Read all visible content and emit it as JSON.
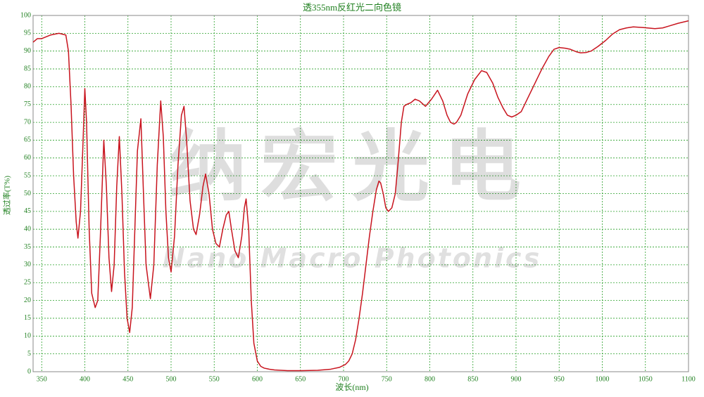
{
  "chart_data": {
    "type": "line",
    "title": "透355nm反红光二向色镜",
    "x_label": "波长(nm)",
    "y_label": "透过率(T%)",
    "watermark": "纳宏光电",
    "watermark_sub": "Nano Macro Photonics",
    "xlim": [
      340,
      1100
    ],
    "ylim": [
      0,
      100
    ],
    "xticks": [
      350,
      400,
      450,
      500,
      550,
      600,
      650,
      700,
      750,
      800,
      850,
      900,
      950,
      1000,
      1050,
      1100
    ],
    "yticks": [
      0,
      5,
      10,
      15,
      20,
      25,
      30,
      35,
      40,
      45,
      50,
      55,
      60,
      65,
      70,
      75,
      80,
      85,
      90,
      95,
      100
    ],
    "grid": true,
    "series": [
      {
        "color": "#c8141e",
        "x": [
          340,
          345,
          350,
          360,
          370,
          378,
          381,
          384,
          387,
          390,
          392,
          395,
          398,
          400,
          402,
          405,
          408,
          412,
          415,
          418,
          422,
          425,
          428,
          431,
          434,
          437,
          440,
          443,
          446,
          449,
          452,
          455,
          458,
          461,
          465,
          468,
          471,
          476,
          480,
          484,
          488,
          491,
          494,
          497,
          500,
          504,
          508,
          512,
          515,
          518,
          522,
          526,
          529,
          533,
          537,
          540,
          544,
          548,
          552,
          556,
          560,
          564,
          567,
          570,
          574,
          578,
          582,
          585,
          587,
          590,
          593,
          596,
          600,
          604,
          608,
          614,
          620,
          635,
          651,
          670,
          685,
          695,
          702,
          706,
          710,
          714,
          718,
          722,
          726,
          730,
          734,
          738,
          741,
          743,
          746,
          749,
          752,
          756,
          758,
          760,
          763,
          767,
          770,
          773,
          778,
          783,
          788,
          795,
          802,
          809,
          815,
          820,
          824,
          828,
          831,
          836,
          844,
          852,
          860,
          866,
          873,
          879,
          885,
          890,
          895,
          900,
          906,
          914,
          922,
          930,
          938,
          944,
          950,
          957,
          963,
          970,
          975,
          981,
          987,
          995,
          1004,
          1012,
          1020,
          1028,
          1036,
          1048,
          1061,
          1070,
          1077,
          1088,
          1100
        ],
        "values": [
          92.5,
          93.5,
          93.5,
          94.5,
          95,
          94.5,
          90,
          75,
          55,
          42,
          37.5,
          45,
          65,
          79.5,
          70,
          40,
          22,
          18,
          20,
          38,
          65,
          52,
          32,
          22.5,
          30,
          52,
          66,
          50,
          28,
          15,
          11,
          18,
          40,
          62,
          71,
          50,
          30,
          20.5,
          30,
          58,
          76,
          66,
          45,
          32,
          28,
          38,
          58,
          72,
          74.5,
          65,
          48,
          40,
          38.5,
          44,
          52,
          55.5,
          50,
          40,
          36,
          35,
          40,
          44,
          45,
          40,
          34,
          32,
          38,
          46,
          48.5,
          40,
          20,
          8,
          3,
          1.5,
          1,
          0.7,
          0.5,
          0.3,
          0.3,
          0.4,
          0.7,
          1.2,
          2,
          3,
          5,
          9,
          15,
          22,
          30,
          38,
          45,
          51,
          53.5,
          53,
          50,
          46,
          45,
          46,
          48,
          50,
          58,
          70,
          74.5,
          75,
          75.5,
          76.5,
          76,
          74.5,
          76.5,
          79,
          76,
          72,
          70,
          69.5,
          70,
          72,
          78,
          82,
          84.5,
          84,
          81,
          77,
          74,
          72,
          71.5,
          72,
          73,
          77,
          81,
          85,
          88.5,
          90.5,
          91,
          90.8,
          90.5,
          89.8,
          89.5,
          89.6,
          90,
          91.3,
          93,
          94.8,
          96,
          96.5,
          96.8,
          96.6,
          96.3,
          96.5,
          97,
          97.8,
          98.5
        ]
      }
    ]
  }
}
